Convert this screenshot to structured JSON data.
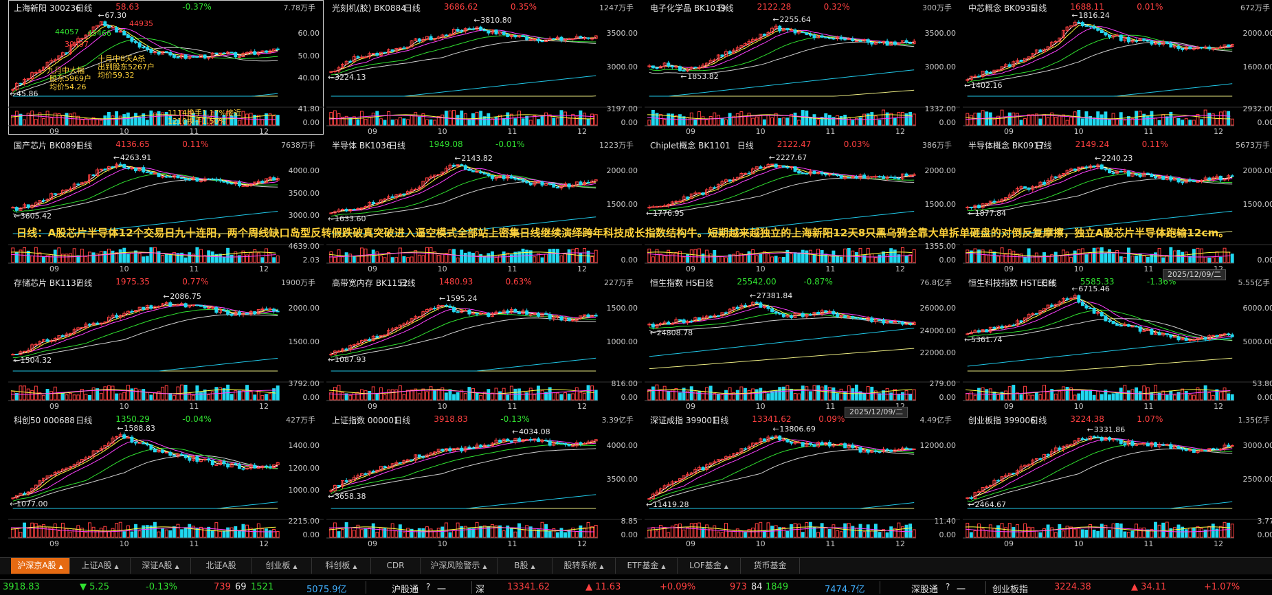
{
  "banner": "日线：A股芯片半导体12个交易日九十连阳，两个周线缺口岛型反转假跌破真突破进入逼空模式全部站上密集日线继续演绎跨年科技成长指数结构牛。短期越来越独立的上海新阳12天8只黑乌鸦全靠大单拆单砸盘的对倒反复摩擦，独立A股芯片半导体跑输12cm。",
  "months": [
    "09",
    "10",
    "11",
    "12"
  ],
  "date_label": "2025/12/09/二",
  "panels": [
    {
      "name": "上海新阳 300236",
      "period": "日线",
      "price": "58.63",
      "change": "-0.37%",
      "volume": "7.78万手",
      "dir": "down",
      "price_dir": "up",
      "high": "67.30",
      "low": "45.86",
      "ma_labels": [
        "60.00",
        "50.00",
        "40.00"
      ],
      "vol_labels": [
        "41.80",
        "0.00"
      ],
      "seed": 3,
      "trend": [
        0.1,
        0.25,
        0.4,
        0.55,
        0.75,
        0.9,
        0.8,
        0.65,
        0.55,
        0.5,
        0.48,
        0.5,
        0.52,
        0.5,
        0.55,
        0.6
      ]
    },
    {
      "name": "光刻机(胶) BK0884",
      "period": "日线",
      "price": "3686.62",
      "change": "0.35%",
      "volume": "1247万手",
      "dir": "up",
      "price_dir": "up",
      "high": "3810.80",
      "low": "3224.13",
      "ma_labels": [
        "3500.00",
        "3000.00"
      ],
      "vol_labels": [
        "3197.00",
        "0.00"
      ],
      "seed": 7,
      "trend": [
        0.3,
        0.45,
        0.5,
        0.55,
        0.6,
        0.7,
        0.72,
        0.8,
        0.85,
        0.8,
        0.75,
        0.72,
        0.7,
        0.7,
        0.72,
        0.73
      ]
    },
    {
      "name": "电子化学品 BK1039",
      "period": "日线",
      "price": "2122.28",
      "change": "0.32%",
      "volume": "300万手",
      "dir": "up",
      "price_dir": "up",
      "high": "2255.64",
      "low": "1853.82",
      "ma_labels": [
        "3500.00",
        "3000.00"
      ],
      "vol_labels": [
        "1332.00",
        "0.00"
      ],
      "seed": 11,
      "trend": [
        0.35,
        0.4,
        0.3,
        0.38,
        0.5,
        0.6,
        0.7,
        0.85,
        0.8,
        0.75,
        0.7,
        0.72,
        0.68,
        0.65,
        0.66,
        0.68
      ]
    },
    {
      "name": "中芯概念 BK0935",
      "period": "日线",
      "price": "1688.11",
      "change": "0.01%",
      "volume": "672万手",
      "dir": "up",
      "price_dir": "up",
      "high": "1816.24",
      "low": "1402.16",
      "ma_labels": [
        "2000.00",
        "1600.00"
      ],
      "vol_labels": [
        "2932.00",
        "0.00"
      ],
      "seed": 13,
      "trend": [
        0.2,
        0.3,
        0.35,
        0.45,
        0.55,
        0.7,
        0.9,
        0.85,
        0.75,
        0.7,
        0.68,
        0.66,
        0.6,
        0.58,
        0.6,
        0.62
      ]
    },
    {
      "name": "国产芯片 BK0891",
      "period": "日线",
      "price": "4136.65",
      "change": "0.11%",
      "volume": "7638万手",
      "dir": "up",
      "price_dir": "up",
      "high": "4263.91",
      "low": "3605.42",
      "ma_labels": [
        "4000.00",
        "3500.00",
        "3000.00"
      ],
      "vol_labels": [
        "4639.00",
        "2.03"
      ],
      "seed": 17,
      "trend": [
        0.3,
        0.35,
        0.45,
        0.55,
        0.65,
        0.8,
        0.85,
        0.8,
        0.72,
        0.7,
        0.68,
        0.66,
        0.62,
        0.6,
        0.64,
        0.68
      ]
    },
    {
      "name": "半导体 BK1036",
      "period": "日线",
      "price": "1949.08",
      "change": "-0.01%",
      "volume": "1223万手",
      "dir": "down",
      "price_dir": "down",
      "high": "2143.82",
      "low": "1633.60",
      "ma_labels": [
        "2000.00",
        "1500.00"
      ],
      "vol_labels": [
        "0.00"
      ],
      "seed": 19,
      "trend": [
        0.25,
        0.3,
        0.35,
        0.4,
        0.5,
        0.6,
        0.75,
        0.85,
        0.78,
        0.7,
        0.68,
        0.64,
        0.6,
        0.58,
        0.62,
        0.64
      ]
    },
    {
      "name": "Chiplet概念 BK1101",
      "period": "日线",
      "price": "2122.47",
      "change": "0.03%",
      "volume": "386万手",
      "dir": "up",
      "price_dir": "up",
      "high": "2227.67",
      "low": "1776.95",
      "ma_labels": [
        "2000.00",
        "1500.00"
      ],
      "vol_labels": [
        "1355.00",
        "0.00"
      ],
      "seed": 23,
      "trend": [
        0.3,
        0.35,
        0.45,
        0.5,
        0.6,
        0.7,
        0.8,
        0.85,
        0.8,
        0.75,
        0.72,
        0.7,
        0.7,
        0.68,
        0.7,
        0.72
      ]
    },
    {
      "name": "半导体概念 BK0917",
      "period": "日线",
      "price": "2149.24",
      "change": "0.11%",
      "volume": "5673万手",
      "dir": "up",
      "price_dir": "up",
      "high": "2240.23",
      "low": "1877.84",
      "ma_labels": [
        "2000.00",
        "1500.00"
      ],
      "vol_labels": [
        "0.00"
      ],
      "seed": 29,
      "trend": [
        0.3,
        0.35,
        0.45,
        0.55,
        0.6,
        0.7,
        0.8,
        0.85,
        0.78,
        0.74,
        0.72,
        0.7,
        0.66,
        0.64,
        0.68,
        0.7
      ]
    },
    {
      "name": "存储芯片 BK1137",
      "period": "日线",
      "price": "1975.35",
      "change": "0.77%",
      "volume": "1900万手",
      "dir": "up",
      "price_dir": "up",
      "high": "2086.75",
      "low": "1504.32",
      "ma_labels": [
        "2000.00",
        "1500.00"
      ],
      "vol_labels": [
        "3792.00",
        "0.00"
      ],
      "seed": 31,
      "trend": [
        0.2,
        0.3,
        0.38,
        0.45,
        0.55,
        0.62,
        0.68,
        0.75,
        0.8,
        0.82,
        0.8,
        0.78,
        0.72,
        0.7,
        0.74,
        0.76
      ]
    },
    {
      "name": "高带宽内存 BK1152",
      "period": "日线",
      "price": "1480.93",
      "change": "0.63%",
      "volume": "227万手",
      "dir": "up",
      "price_dir": "up",
      "high": "1595.24",
      "low": "1087.93",
      "ma_labels": [
        "1500.00",
        "1000.00"
      ],
      "vol_labels": [
        "816.00",
        "0.00"
      ],
      "seed": 37,
      "trend": [
        0.2,
        0.28,
        0.38,
        0.45,
        0.55,
        0.7,
        0.8,
        0.75,
        0.72,
        0.7,
        0.74,
        0.72,
        0.68,
        0.64,
        0.66,
        0.7
      ]
    },
    {
      "name": "恒生指数 HSI",
      "period": "日线",
      "price": "25542.00",
      "change": "-0.87%",
      "volume": "76.8亿手",
      "dir": "down",
      "price_dir": "down",
      "high": "27381.84",
      "low": "24808.78",
      "ma_labels": [
        "26000.00",
        "24000.00",
        "22000.00"
      ],
      "vol_labels": [
        "279.00",
        "0.00"
      ],
      "seed": 41,
      "trend": [
        0.55,
        0.6,
        0.62,
        0.65,
        0.7,
        0.78,
        0.85,
        0.72,
        0.68,
        0.7,
        0.72,
        0.68,
        0.64,
        0.62,
        0.6,
        0.58
      ]
    },
    {
      "name": "恒生科技指数 HSTECH",
      "period": "日线",
      "price": "5585.33",
      "change": "-1.36%",
      "volume": "5.55亿手",
      "dir": "down",
      "price_dir": "down",
      "high": "6715.46",
      "low": "5361.74",
      "ma_labels": [
        "6000.00",
        "5000.00"
      ],
      "vol_labels": [
        "53.80",
        "0.00"
      ],
      "seed": 43,
      "trend": [
        0.45,
        0.5,
        0.55,
        0.62,
        0.72,
        0.85,
        0.92,
        0.75,
        0.62,
        0.55,
        0.5,
        0.45,
        0.4,
        0.38,
        0.42,
        0.44
      ]
    },
    {
      "name": "科创50 000688",
      "period": "日线",
      "price": "1350.29",
      "change": "-0.04%",
      "volume": "427万手",
      "dir": "down",
      "price_dir": "down",
      "high": "1588.83",
      "low": "1077.00",
      "ma_labels": [
        "1400.00",
        "1200.00",
        "1000.00"
      ],
      "vol_labels": [
        "2215.00",
        "0.00"
      ],
      "seed": 47,
      "trend": [
        0.1,
        0.25,
        0.4,
        0.5,
        0.6,
        0.75,
        0.9,
        0.82,
        0.72,
        0.66,
        0.62,
        0.58,
        0.54,
        0.5,
        0.52,
        0.54
      ]
    },
    {
      "name": "上证指数 000001",
      "period": "日线",
      "price": "3918.83",
      "change": "-0.13%",
      "volume": "3.39亿手",
      "dir": "down",
      "price_dir": "up",
      "high": "4034.08",
      "low": "3658.38",
      "ma_labels": [
        "4000.00",
        "3500.00"
      ],
      "vol_labels": [
        "8.85",
        "0.00"
      ],
      "seed": 53,
      "trend": [
        0.25,
        0.35,
        0.45,
        0.52,
        0.58,
        0.65,
        0.7,
        0.72,
        0.76,
        0.8,
        0.84,
        0.86,
        0.82,
        0.78,
        0.8,
        0.82
      ]
    },
    {
      "name": "深证成指 399001",
      "period": "日线",
      "price": "13341.62",
      "change": "0.09%",
      "volume": "4.49亿手",
      "dir": "up",
      "price_dir": "up",
      "high": "13806.69",
      "low": "11419.28",
      "ma_labels": [
        "12000.00"
      ],
      "vol_labels": [
        "11.40",
        "0.00"
      ],
      "seed": 59,
      "trend": [
        0.15,
        0.28,
        0.4,
        0.5,
        0.6,
        0.7,
        0.82,
        0.88,
        0.82,
        0.78,
        0.8,
        0.78,
        0.72,
        0.7,
        0.74,
        0.76
      ]
    },
    {
      "name": "创业板指 399006",
      "period": "日线",
      "price": "3224.38",
      "change": "1.07%",
      "volume": "1.35亿手",
      "dir": "up",
      "price_dir": "up",
      "high": "3331.86",
      "low": "2464.67",
      "ma_labels": [
        "3000.00",
        "2500.00"
      ],
      "vol_labels": [
        "3.77",
        "0.00"
      ],
      "seed": 61,
      "trend": [
        0.12,
        0.25,
        0.38,
        0.5,
        0.6,
        0.72,
        0.82,
        0.88,
        0.84,
        0.8,
        0.8,
        0.78,
        0.72,
        0.7,
        0.74,
        0.78
      ]
    }
  ],
  "notes": [
    {
      "text": "九月中大幅",
      "color": "#ffd23a"
    },
    {
      "text": "股东5969户",
      "color": "#ffd23a"
    },
    {
      "text": "均价54.26",
      "color": "#ffd23a"
    },
    {
      "text": "十月中8天A杀",
      "color": "#ffd23a"
    },
    {
      "text": "出到股东5267户",
      "color": "#ffd23a"
    },
    {
      "text": "均价59.32",
      "color": "#ffd23a"
    },
    {
      "text": "1114换手1.17%接近",
      "color": "#ffd23a"
    },
    {
      "text": "1210换手1.50%",
      "color": "#ffd23a"
    },
    {
      "text": "44057",
      "color": "#30e030"
    },
    {
      "text": "45466",
      "color": "#30e030"
    },
    {
      "text": "39497",
      "color": "#ff4040"
    },
    {
      "text": "44935",
      "color": "#ff4040"
    }
  ],
  "tabs": [
    {
      "label": "沪深京A股",
      "caret": true,
      "active": true
    },
    {
      "label": "上证A股",
      "caret": true
    },
    {
      "label": "深证A股",
      "caret": true
    },
    {
      "label": "北证A股",
      "caret": false
    },
    {
      "label": "创业板",
      "caret": true
    },
    {
      "label": "科创板",
      "caret": true
    },
    {
      "label": "CDR",
      "caret": false
    },
    {
      "label": "沪深风险警示",
      "caret": true
    },
    {
      "label": "B股",
      "caret": true
    },
    {
      "label": "股转系统",
      "caret": true
    },
    {
      "label": "ETF基金",
      "caret": true
    },
    {
      "label": "LOF基金",
      "caret": true
    },
    {
      "label": "货币基金",
      "caret": false
    }
  ],
  "status": {
    "sh_index": "3918.83",
    "sh_change": "▼ 5.25",
    "sh_pct": "-0.13%",
    "sh_up": "739",
    "sh_flat": "69",
    "sh_down": "1521",
    "sh_amount": "5075.9亿",
    "hgt_label": "沪股通",
    "hgt_value": "一",
    "sz_label": "深",
    "sz_index": "13341.62",
    "sz_change": "▲ 11.63",
    "sz_pct": "+0.09%",
    "sz_up": "973",
    "sz_flat": "84",
    "sz_down": "1849",
    "sz_amount": "7474.7亿",
    "sgt_label": "深股通",
    "sgt_value": "一",
    "cyb_label": "创业板指",
    "cyb_index": "3224.38",
    "cyb_change": "▲ 34.11",
    "cyb_pct": "+1.07%"
  },
  "colors": {
    "up": "#ff4040",
    "down": "#30e030",
    "ma5": "#ffffff",
    "ma10": "#ffff40",
    "ma20": "#ff40ff",
    "ma30": "#30e030",
    "ma60": "#d0d0d0",
    "ma120": "#20c8e8",
    "ma250": "#e8e880",
    "accent": "#e56a12"
  }
}
